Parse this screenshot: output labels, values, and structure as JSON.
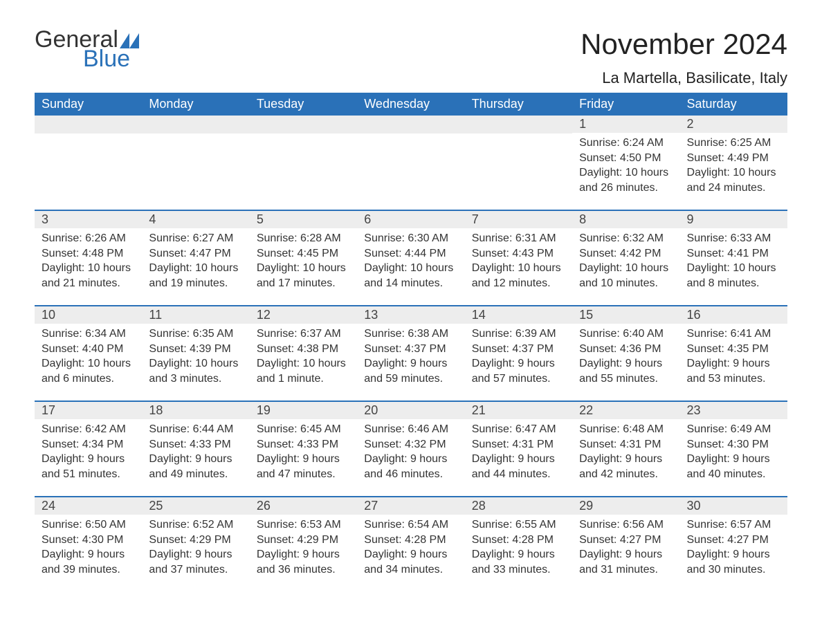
{
  "brand": {
    "word1": "General",
    "word2": "Blue",
    "word1_color": "#333333",
    "word2_color": "#2a71b8",
    "icon_color": "#2a71b8"
  },
  "header": {
    "month_title": "November 2024",
    "location": "La Martella, Basilicate, Italy"
  },
  "style": {
    "header_bg": "#2a71b8",
    "header_text": "#ffffff",
    "daynum_bg": "#ededed",
    "row_divider": "#2a71b8",
    "body_text": "#333333",
    "title_fontsize_pt": 32,
    "location_fontsize_pt": 17,
    "weekday_fontsize_pt": 14,
    "daynum_fontsize_pt": 14,
    "content_fontsize_pt": 12
  },
  "weekdays": [
    "Sunday",
    "Monday",
    "Tuesday",
    "Wednesday",
    "Thursday",
    "Friday",
    "Saturday"
  ],
  "weeks": [
    [
      null,
      null,
      null,
      null,
      null,
      {
        "n": "1",
        "sr": "Sunrise: 6:24 AM",
        "ss": "Sunset: 4:50 PM",
        "dl": "Daylight: 10 hours and 26 minutes."
      },
      {
        "n": "2",
        "sr": "Sunrise: 6:25 AM",
        "ss": "Sunset: 4:49 PM",
        "dl": "Daylight: 10 hours and 24 minutes."
      }
    ],
    [
      {
        "n": "3",
        "sr": "Sunrise: 6:26 AM",
        "ss": "Sunset: 4:48 PM",
        "dl": "Daylight: 10 hours and 21 minutes."
      },
      {
        "n": "4",
        "sr": "Sunrise: 6:27 AM",
        "ss": "Sunset: 4:47 PM",
        "dl": "Daylight: 10 hours and 19 minutes."
      },
      {
        "n": "5",
        "sr": "Sunrise: 6:28 AM",
        "ss": "Sunset: 4:45 PM",
        "dl": "Daylight: 10 hours and 17 minutes."
      },
      {
        "n": "6",
        "sr": "Sunrise: 6:30 AM",
        "ss": "Sunset: 4:44 PM",
        "dl": "Daylight: 10 hours and 14 minutes."
      },
      {
        "n": "7",
        "sr": "Sunrise: 6:31 AM",
        "ss": "Sunset: 4:43 PM",
        "dl": "Daylight: 10 hours and 12 minutes."
      },
      {
        "n": "8",
        "sr": "Sunrise: 6:32 AM",
        "ss": "Sunset: 4:42 PM",
        "dl": "Daylight: 10 hours and 10 minutes."
      },
      {
        "n": "9",
        "sr": "Sunrise: 6:33 AM",
        "ss": "Sunset: 4:41 PM",
        "dl": "Daylight: 10 hours and 8 minutes."
      }
    ],
    [
      {
        "n": "10",
        "sr": "Sunrise: 6:34 AM",
        "ss": "Sunset: 4:40 PM",
        "dl": "Daylight: 10 hours and 6 minutes."
      },
      {
        "n": "11",
        "sr": "Sunrise: 6:35 AM",
        "ss": "Sunset: 4:39 PM",
        "dl": "Daylight: 10 hours and 3 minutes."
      },
      {
        "n": "12",
        "sr": "Sunrise: 6:37 AM",
        "ss": "Sunset: 4:38 PM",
        "dl": "Daylight: 10 hours and 1 minute."
      },
      {
        "n": "13",
        "sr": "Sunrise: 6:38 AM",
        "ss": "Sunset: 4:37 PM",
        "dl": "Daylight: 9 hours and 59 minutes."
      },
      {
        "n": "14",
        "sr": "Sunrise: 6:39 AM",
        "ss": "Sunset: 4:37 PM",
        "dl": "Daylight: 9 hours and 57 minutes."
      },
      {
        "n": "15",
        "sr": "Sunrise: 6:40 AM",
        "ss": "Sunset: 4:36 PM",
        "dl": "Daylight: 9 hours and 55 minutes."
      },
      {
        "n": "16",
        "sr": "Sunrise: 6:41 AM",
        "ss": "Sunset: 4:35 PM",
        "dl": "Daylight: 9 hours and 53 minutes."
      }
    ],
    [
      {
        "n": "17",
        "sr": "Sunrise: 6:42 AM",
        "ss": "Sunset: 4:34 PM",
        "dl": "Daylight: 9 hours and 51 minutes."
      },
      {
        "n": "18",
        "sr": "Sunrise: 6:44 AM",
        "ss": "Sunset: 4:33 PM",
        "dl": "Daylight: 9 hours and 49 minutes."
      },
      {
        "n": "19",
        "sr": "Sunrise: 6:45 AM",
        "ss": "Sunset: 4:33 PM",
        "dl": "Daylight: 9 hours and 47 minutes."
      },
      {
        "n": "20",
        "sr": "Sunrise: 6:46 AM",
        "ss": "Sunset: 4:32 PM",
        "dl": "Daylight: 9 hours and 46 minutes."
      },
      {
        "n": "21",
        "sr": "Sunrise: 6:47 AM",
        "ss": "Sunset: 4:31 PM",
        "dl": "Daylight: 9 hours and 44 minutes."
      },
      {
        "n": "22",
        "sr": "Sunrise: 6:48 AM",
        "ss": "Sunset: 4:31 PM",
        "dl": "Daylight: 9 hours and 42 minutes."
      },
      {
        "n": "23",
        "sr": "Sunrise: 6:49 AM",
        "ss": "Sunset: 4:30 PM",
        "dl": "Daylight: 9 hours and 40 minutes."
      }
    ],
    [
      {
        "n": "24",
        "sr": "Sunrise: 6:50 AM",
        "ss": "Sunset: 4:30 PM",
        "dl": "Daylight: 9 hours and 39 minutes."
      },
      {
        "n": "25",
        "sr": "Sunrise: 6:52 AM",
        "ss": "Sunset: 4:29 PM",
        "dl": "Daylight: 9 hours and 37 minutes."
      },
      {
        "n": "26",
        "sr": "Sunrise: 6:53 AM",
        "ss": "Sunset: 4:29 PM",
        "dl": "Daylight: 9 hours and 36 minutes."
      },
      {
        "n": "27",
        "sr": "Sunrise: 6:54 AM",
        "ss": "Sunset: 4:28 PM",
        "dl": "Daylight: 9 hours and 34 minutes."
      },
      {
        "n": "28",
        "sr": "Sunrise: 6:55 AM",
        "ss": "Sunset: 4:28 PM",
        "dl": "Daylight: 9 hours and 33 minutes."
      },
      {
        "n": "29",
        "sr": "Sunrise: 6:56 AM",
        "ss": "Sunset: 4:27 PM",
        "dl": "Daylight: 9 hours and 31 minutes."
      },
      {
        "n": "30",
        "sr": "Sunrise: 6:57 AM",
        "ss": "Sunset: 4:27 PM",
        "dl": "Daylight: 9 hours and 30 minutes."
      }
    ]
  ]
}
